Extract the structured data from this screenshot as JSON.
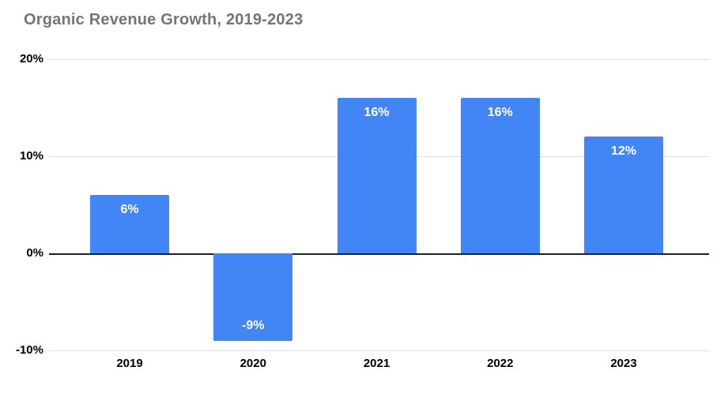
{
  "chart_data": {
    "type": "bar",
    "title": "Organic Revenue Growth, 2019-2023",
    "categories": [
      "2019",
      "2020",
      "2021",
      "2022",
      "2023"
    ],
    "values": [
      6,
      -9,
      16,
      16,
      12
    ],
    "bar_labels": [
      "6%",
      "-9%",
      "16%",
      "16%",
      "12%"
    ],
    "xlabel": "",
    "ylabel": "",
    "ylim": [
      -10,
      20
    ],
    "yticks": [
      20,
      10,
      0,
      -10
    ],
    "ytick_labels": [
      "20%",
      "10%",
      "0%",
      "-10%"
    ],
    "grid": "horizontal",
    "legend": "none",
    "value_label_position": "inside-end",
    "colors": {
      "bar": "#4285f4",
      "bar_label_text": "#ffffff",
      "title_text": "#757575",
      "axis_text": "#000000",
      "gridline": "#e0e0e0",
      "zero_line": "#212121",
      "background": "#ffffff"
    }
  }
}
